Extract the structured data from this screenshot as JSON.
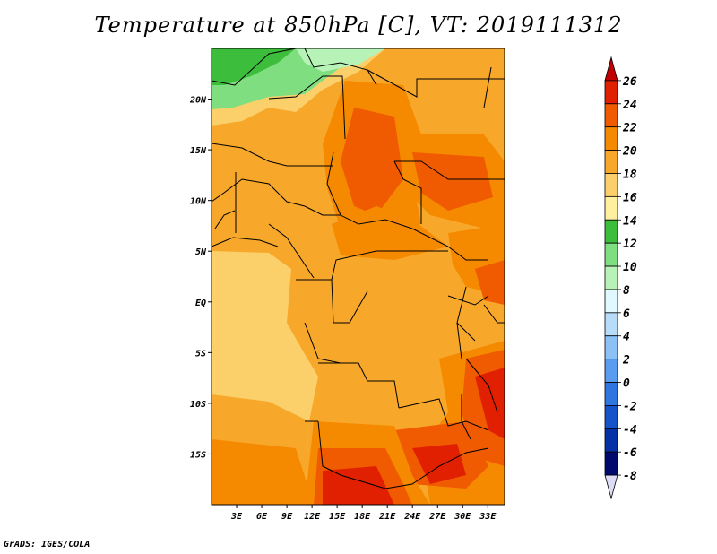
{
  "title": "Temperature at 850hPa [C], VT: 2019111312",
  "credit": "GrADS: IGES/COLA",
  "map": {
    "lon_labels": [
      "3E",
      "6E",
      "9E",
      "12E",
      "15E",
      "18E",
      "21E",
      "24E",
      "27E",
      "30E",
      "33E"
    ],
    "lat_labels": [
      "20N",
      "15N",
      "10N",
      "5N",
      "EQ",
      "5S",
      "10S",
      "15S"
    ],
    "lon_range": [
      0,
      35
    ],
    "lat_range": [
      -20,
      25
    ]
  },
  "colorbar": {
    "labels": [
      "26",
      "24",
      "22",
      "20",
      "18",
      "16",
      "14",
      "12",
      "10",
      "8",
      "6",
      "4",
      "2",
      "0",
      "-2",
      "-4",
      "-6",
      "-8"
    ],
    "colors": [
      "#c10000",
      "#e02000",
      "#f05a00",
      "#f58a00",
      "#f7a82b",
      "#fbd06a",
      "#fff0a0",
      "#3cbd3c",
      "#7fde7f",
      "#b7f2b7",
      "#e0f8ff",
      "#b6dcfa",
      "#8cc1f5",
      "#5a9cef",
      "#2f76e0",
      "#1553cb",
      "#0531a6",
      "#000a6e"
    ],
    "under_color": "#dcdcf5"
  }
}
